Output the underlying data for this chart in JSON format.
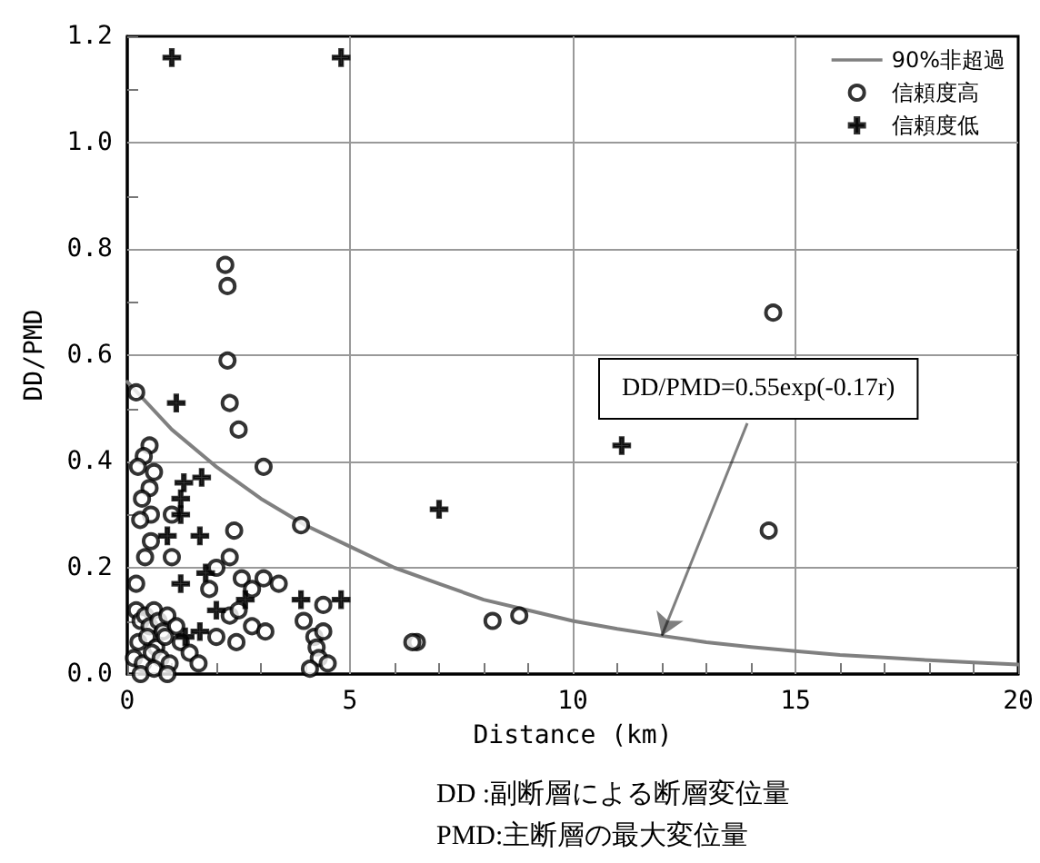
{
  "chart_data": {
    "type": "scatter",
    "xlabel": "Distance (km)",
    "ylabel": "DD/PMD",
    "xlim": [
      0,
      20
    ],
    "ylim": [
      0,
      1.2
    ],
    "xticks": [
      0,
      {
        "value": 1,
        "label": null
      },
      {
        "value": 2,
        "label": null
      },
      {
        "value": 3,
        "label": null
      },
      {
        "value": 4,
        "label": null
      },
      5,
      {
        "value": 6,
        "label": null
      },
      {
        "value": 7,
        "label": null
      },
      {
        "value": 8,
        "label": null
      },
      {
        "value": 9,
        "label": null
      },
      10,
      {
        "value": 11,
        "label": null
      },
      {
        "value": 12,
        "label": null
      },
      {
        "value": 13,
        "label": null
      },
      {
        "value": 14,
        "label": null
      },
      15,
      {
        "value": 16,
        "label": null
      },
      {
        "value": 17,
        "label": null
      },
      {
        "value": 18,
        "label": null
      },
      {
        "value": 19,
        "label": null
      },
      20
    ],
    "yticks": [
      {
        "value": 0,
        "label": "0.0"
      },
      {
        "value": 0.1,
        "label": null
      },
      {
        "value": 0.2,
        "label": "0.2"
      },
      {
        "value": 0.3,
        "label": null
      },
      {
        "value": 0.4,
        "label": "0.4"
      },
      {
        "value": 0.5,
        "label": null
      },
      {
        "value": 0.6,
        "label": "0.6"
      },
      {
        "value": 0.7,
        "label": null
      },
      {
        "value": 0.8,
        "label": "0.8"
      },
      {
        "value": 0.9,
        "label": null
      },
      {
        "value": 1.0,
        "label": "1.0"
      },
      {
        "value": 1.1,
        "label": null
      },
      {
        "value": 1.2,
        "label": "1.2"
      }
    ],
    "grid": true,
    "legend": "top right",
    "series": [
      {
        "name": "90%非超過",
        "type": "line",
        "color": "#808080",
        "marker": "none",
        "line_style": "solid",
        "x": [
          0,
          1,
          2,
          3,
          4,
          5,
          6,
          7,
          8,
          9,
          10,
          11,
          12,
          13,
          14,
          15,
          16,
          17,
          18,
          19,
          20
        ],
        "values": [
          0.55,
          0.46,
          0.39,
          0.33,
          0.28,
          0.24,
          0.2,
          0.17,
          0.14,
          0.12,
          0.1,
          0.085,
          0.072,
          0.06,
          0.051,
          0.043,
          0.036,
          0.031,
          0.026,
          0.022,
          0.018
        ]
      },
      {
        "name": "信頼度高",
        "type": "scatter",
        "color": "#000000",
        "marker": "circle",
        "x": [
          0.2,
          2.2,
          2.25,
          2.25,
          2.3,
          2.5,
          3.06,
          3.9,
          2.4,
          2.3,
          0.5,
          0.37,
          0.24,
          0.6,
          0.5,
          0.33,
          0.53,
          0.29,
          1.0,
          0.53,
          0.4,
          1.0,
          0.2,
          2.0,
          1.84,
          2.57,
          3.06,
          3.4,
          2.8,
          4.4,
          3.96,
          2.3,
          2.5,
          2.8,
          3.1,
          2.0,
          2.45,
          4.2,
          4.4,
          4.25,
          6.5,
          6.4,
          8.2,
          8.8,
          14.5,
          14.4,
          0.2,
          0.3,
          0.4,
          0.5,
          0.6,
          0.7,
          0.8,
          0.9,
          1.1,
          0.25,
          0.45,
          0.65,
          0.85,
          1.2,
          0.15,
          0.35,
          0.55,
          0.75,
          0.95,
          0.3,
          0.6,
          0.9,
          1.4,
          1.6,
          4.3,
          4.5,
          4.1
        ],
        "values": [
          0.53,
          0.77,
          0.73,
          0.59,
          0.51,
          0.46,
          0.39,
          0.28,
          0.27,
          0.22,
          0.43,
          0.41,
          0.39,
          0.38,
          0.35,
          0.33,
          0.3,
          0.29,
          0.3,
          0.25,
          0.22,
          0.22,
          0.17,
          0.2,
          0.16,
          0.18,
          0.18,
          0.17,
          0.16,
          0.13,
          0.1,
          0.11,
          0.12,
          0.09,
          0.08,
          0.07,
          0.06,
          0.07,
          0.08,
          0.05,
          0.06,
          0.06,
          0.1,
          0.11,
          0.68,
          0.27,
          0.12,
          0.1,
          0.11,
          0.09,
          0.12,
          0.1,
          0.08,
          0.11,
          0.09,
          0.06,
          0.07,
          0.05,
          0.07,
          0.06,
          0.03,
          0.02,
          0.04,
          0.03,
          0.02,
          0.0,
          0.01,
          0.0,
          0.04,
          0.02,
          0.03,
          0.02,
          0.01
        ]
      },
      {
        "name": "信頼度低",
        "type": "scatter",
        "color": "#000000",
        "marker": "cross",
        "x": [
          1.0,
          4.8,
          7.0,
          11.1,
          1.1,
          1.67,
          1.27,
          1.2,
          1.2,
          0.9,
          1.63,
          1.76,
          1.2,
          3.9,
          4.8,
          2.65,
          1.63,
          1.3,
          2.0
        ],
        "values": [
          1.16,
          1.16,
          0.31,
          0.43,
          0.51,
          0.37,
          0.36,
          0.33,
          0.3,
          0.26,
          0.26,
          0.19,
          0.17,
          0.14,
          0.14,
          0.14,
          0.08,
          0.07,
          0.12
        ]
      }
    ],
    "annotations": [
      {
        "text": "DD/PMD=0.55exp(-0.17r)",
        "x": 12,
        "y": 0.072
      },
      "DD :副断層による断層変位量",
      "PMD:主断層の最大変位量"
    ]
  }
}
